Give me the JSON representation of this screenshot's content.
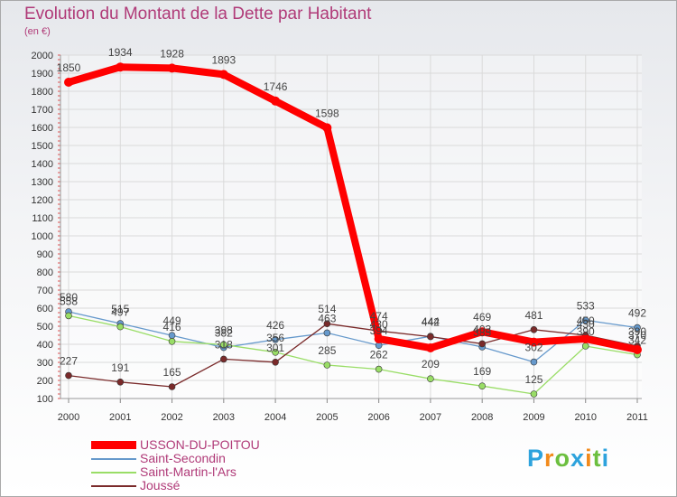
{
  "chart_data": {
    "type": "line",
    "title": "Evolution du Montant de la Dette par Habitant",
    "subtitle": "(en €)",
    "xlabel": "",
    "ylabel": "",
    "ylim": [
      100,
      2000
    ],
    "ytick_step": 100,
    "grid": true,
    "legend_position": "bottom-left",
    "categories": [
      "2000",
      "2001",
      "2002",
      "2003",
      "2004",
      "2005",
      "2006",
      "2007",
      "2008",
      "2009",
      "2010",
      "2011"
    ],
    "series": [
      {
        "name": "USSON-DU-POITOU",
        "color": "#ff0000",
        "values": [
          1850,
          1934,
          1928,
          1893,
          1746,
          1598,
          430,
          380,
          469,
          412,
          430,
          370
        ],
        "labels": [
          "1850",
          "1934",
          "1928",
          "1893",
          "1746",
          "1598",
          "430",
          "",
          "469",
          "",
          "430",
          "370"
        ]
      },
      {
        "name": "Saint-Secondin",
        "color": "#6699cc",
        "values": [
          580,
          515,
          449,
          382,
          426,
          463,
          394,
          444,
          385,
          302,
          533,
          492
        ],
        "labels": [
          "580",
          "515",
          "449",
          "382",
          "426",
          "463",
          "394",
          "444",
          "385",
          "302",
          "533",
          "492"
        ]
      },
      {
        "name": "Saint-Martin-l'Ars",
        "color": "#99dd66",
        "values": [
          558,
          497,
          416,
          398,
          356,
          285,
          262,
          209,
          169,
          125,
          390,
          342
        ],
        "labels": [
          "558",
          "497",
          "416",
          "398",
          "356",
          "285",
          "262",
          "209",
          "169",
          "125",
          "390",
          "342"
        ]
      },
      {
        "name": "Joussé",
        "color": "#7a2a2a",
        "values": [
          227,
          191,
          165,
          318,
          301,
          514,
          474,
          442,
          403,
          481,
          450,
          390
        ],
        "labels": [
          "227",
          "191",
          "165",
          "318",
          "301",
          "514",
          "474",
          "442",
          "403",
          "481",
          "450",
          "390"
        ]
      }
    ]
  },
  "logo": {
    "text": "Proxiti",
    "letters": [
      "P",
      "r",
      "o",
      "x",
      "i",
      "t",
      "i"
    ],
    "colors": [
      "#2ea3dd",
      "#f28a1b",
      "#6cbf3f",
      "#2ea3dd",
      "#f28a1b",
      "#6cbf3f",
      "#2ea3dd"
    ]
  }
}
